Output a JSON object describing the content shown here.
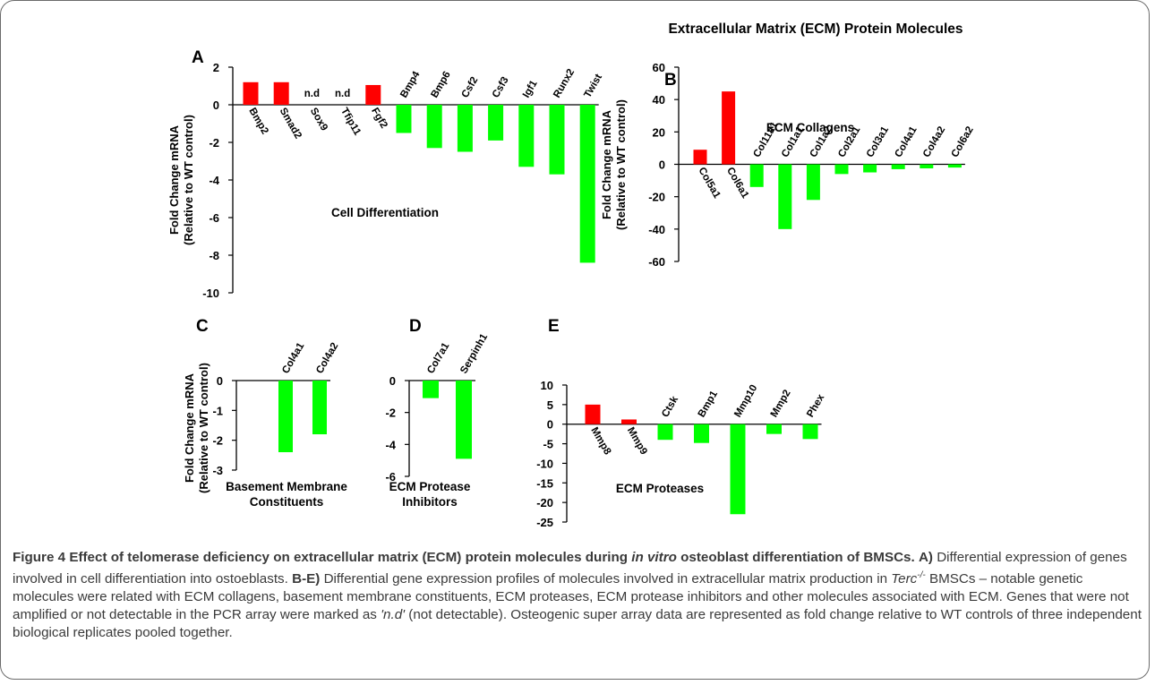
{
  "figure": {
    "main_title": "Extracellular Matrix (ECM) Protein Molecules",
    "ylabel_line1": "Fold Change mRNA",
    "ylabel_line2": "(Relative to WT control)",
    "nd_text": "n.d",
    "colors": {
      "up": "#ff0000",
      "down": "#00ff00",
      "axis": "#000000"
    }
  },
  "chart_data": [
    {
      "panel": "A",
      "type": "bar",
      "title": "Cell Differentiation",
      "categories": [
        "Bmp2",
        "Smad2",
        "Sox9",
        "Tfip11",
        "Fgf2",
        "Bmp4",
        "Bmp6",
        "Csf2",
        "Csf3",
        "Igf1",
        "Runx2",
        "Twist"
      ],
      "values": [
        1.2,
        1.2,
        null,
        null,
        1.05,
        -1.5,
        -2.3,
        -2.5,
        -1.9,
        -3.3,
        -3.7,
        -8.4
      ],
      "not_detected": [
        "Sox9",
        "Tfip11"
      ],
      "ylim": [
        -10,
        2
      ],
      "yticks": [
        2,
        0,
        -2,
        -4,
        -6,
        -8,
        -10
      ],
      "ylabel": "Fold Change mRNA (Relative to WT control)"
    },
    {
      "panel": "B",
      "type": "bar",
      "title": "ECM Collagens",
      "categories": [
        "Col5a1",
        "Col6a1",
        "Col11a1",
        "Col1a1",
        "Col1a2",
        "Col2a1",
        "Col3a1",
        "Col4a1",
        "Col4a2",
        "Col6a2"
      ],
      "values": [
        9,
        45,
        -14,
        -40,
        -22,
        -6,
        -5,
        -3,
        -2.5,
        -2
      ],
      "ylim": [
        -60,
        60
      ],
      "yticks": [
        60,
        40,
        20,
        0,
        -20,
        -40,
        -60
      ],
      "ylabel": "Fold Change mRNA (Relative to WT control)"
    },
    {
      "panel": "C",
      "type": "bar",
      "title": "Basement Membrane Constituents",
      "title_lines": [
        "Basement Membrane",
        "Constituents"
      ],
      "categories": [
        "Col4a1",
        "Col4a2"
      ],
      "values": [
        -2.4,
        -1.8
      ],
      "ylim": [
        -3,
        0
      ],
      "yticks": [
        0,
        -1,
        -2,
        -3
      ],
      "ylabel": "Fold Change mRNA (Relative to WT control)"
    },
    {
      "panel": "D",
      "type": "bar",
      "title": "ECM Protease Inhibitors",
      "title_lines": [
        "ECM Protease",
        "Inhibitors"
      ],
      "categories": [
        "Col7a1",
        "Serpinh1"
      ],
      "values": [
        -1.1,
        -4.9
      ],
      "ylim": [
        -6,
        0
      ],
      "yticks": [
        0,
        -2,
        -4,
        -6
      ]
    },
    {
      "panel": "E",
      "type": "bar",
      "title": "ECM Proteases",
      "categories": [
        "Mmp8",
        "Mmp9",
        "Ctsk",
        "Bmp1",
        "Mmp10",
        "Mmp2",
        "Phex"
      ],
      "values": [
        5,
        1.2,
        -4,
        -4.8,
        -23,
        -2.5,
        -3.8
      ],
      "ylim": [
        -25,
        10
      ],
      "yticks": [
        10,
        5,
        0,
        -5,
        -10,
        -15,
        -20,
        -25
      ]
    }
  ],
  "caption": {
    "label": "Figure 4",
    "title_pre": "Effect of telomerase deficiency on extracellular matrix (ECM) protein molecules during",
    "title_italic": "in vitro",
    "title_post": "osteoblast differentiation of BMSCs.",
    "ref_a": "A)",
    "text_a": "Differential expression of genes involved in cell differentiation into ostoeblasts.",
    "ref_be": "B-E)",
    "text_be_1": "Differential gene expression profiles of molecules involved in extracellular matrix production in",
    "terc": "Terc",
    "terc_sup": "-/-",
    "text_be_2": "BMSCs – notable genetic molecules were related with ECM collagens, basement membrane constituents, ECM proteases, ECM protease inhibitors and other molecules associated with ECM. Genes that were not amplified or not detectable in the PCR array were marked as",
    "nd_quote": "'n.d'",
    "text_be_3": "(not detectable). Osteogenic super array data are represented as fold change relative to WT controls of three independent biological replicates pooled together."
  }
}
